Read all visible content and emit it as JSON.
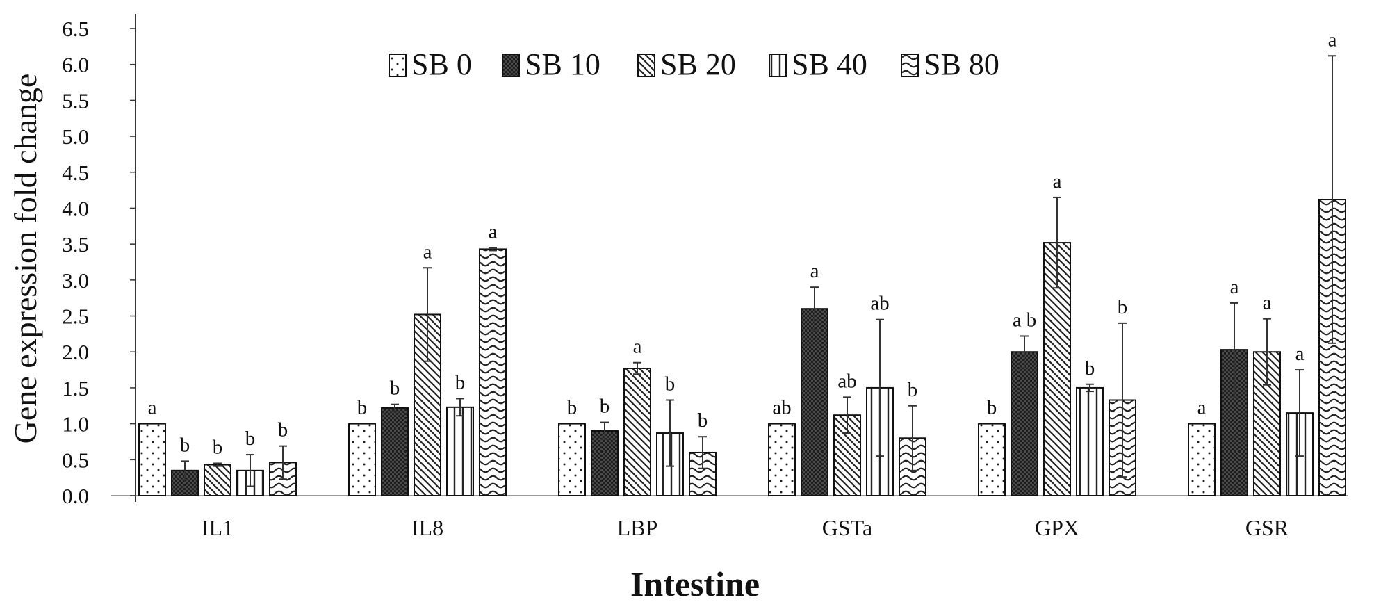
{
  "chart_data": {
    "type": "bar",
    "title": "",
    "xlabel": "Intestine",
    "ylabel": "Gene expression fold change",
    "ylim": [
      0,
      6.5
    ],
    "yticks": [
      "0.0",
      "0.5",
      "1.0",
      "1.5",
      "2.0",
      "2.5",
      "3.0",
      "3.5",
      "4.0",
      "4.5",
      "5.0",
      "5.5",
      "6.0",
      "6.5"
    ],
    "legend_position": "top-center",
    "categories": [
      "IL1",
      "IL8",
      "LBP",
      "GSTa",
      "GPX",
      "GSR"
    ],
    "series": [
      {
        "name": "SB 0",
        "pattern": "dots",
        "values": [
          1.0,
          1.0,
          1.0,
          1.0,
          1.0,
          1.0
        ],
        "errors": [
          0,
          0,
          0,
          0,
          0,
          0
        ],
        "letters": [
          "a",
          "b",
          "b",
          "ab",
          "b",
          "a"
        ]
      },
      {
        "name": "SB 10",
        "pattern": "checker",
        "values": [
          0.35,
          1.22,
          0.9,
          2.6,
          2.0,
          2.03
        ],
        "errors": [
          0.13,
          0.05,
          0.12,
          0.3,
          0.22,
          0.65
        ],
        "letters": [
          "b",
          "b",
          "b",
          "a",
          "a b",
          "a"
        ]
      },
      {
        "name": "SB 20",
        "pattern": "diagonal",
        "values": [
          0.43,
          2.52,
          1.77,
          1.12,
          3.52,
          2.0
        ],
        "errors": [
          0.02,
          0.65,
          0.08,
          0.25,
          0.63,
          0.46
        ],
        "letters": [
          "b",
          "a",
          "a",
          "ab",
          "a",
          "a"
        ]
      },
      {
        "name": "SB 40",
        "pattern": "vertical",
        "values": [
          0.35,
          1.23,
          0.87,
          1.5,
          1.5,
          1.15
        ],
        "errors": [
          0.22,
          0.12,
          0.46,
          0.95,
          0.05,
          0.6
        ],
        "letters": [
          "b",
          "b",
          "b",
          "ab",
          "b",
          "a"
        ]
      },
      {
        "name": "SB 80",
        "pattern": "wave",
        "values": [
          0.46,
          3.43,
          0.6,
          0.8,
          1.33,
          4.12
        ],
        "errors": [
          0.23,
          0.02,
          0.22,
          0.45,
          1.07,
          2.0
        ],
        "letters": [
          "b",
          "a",
          "b",
          "b",
          "b",
          "a"
        ]
      }
    ]
  }
}
